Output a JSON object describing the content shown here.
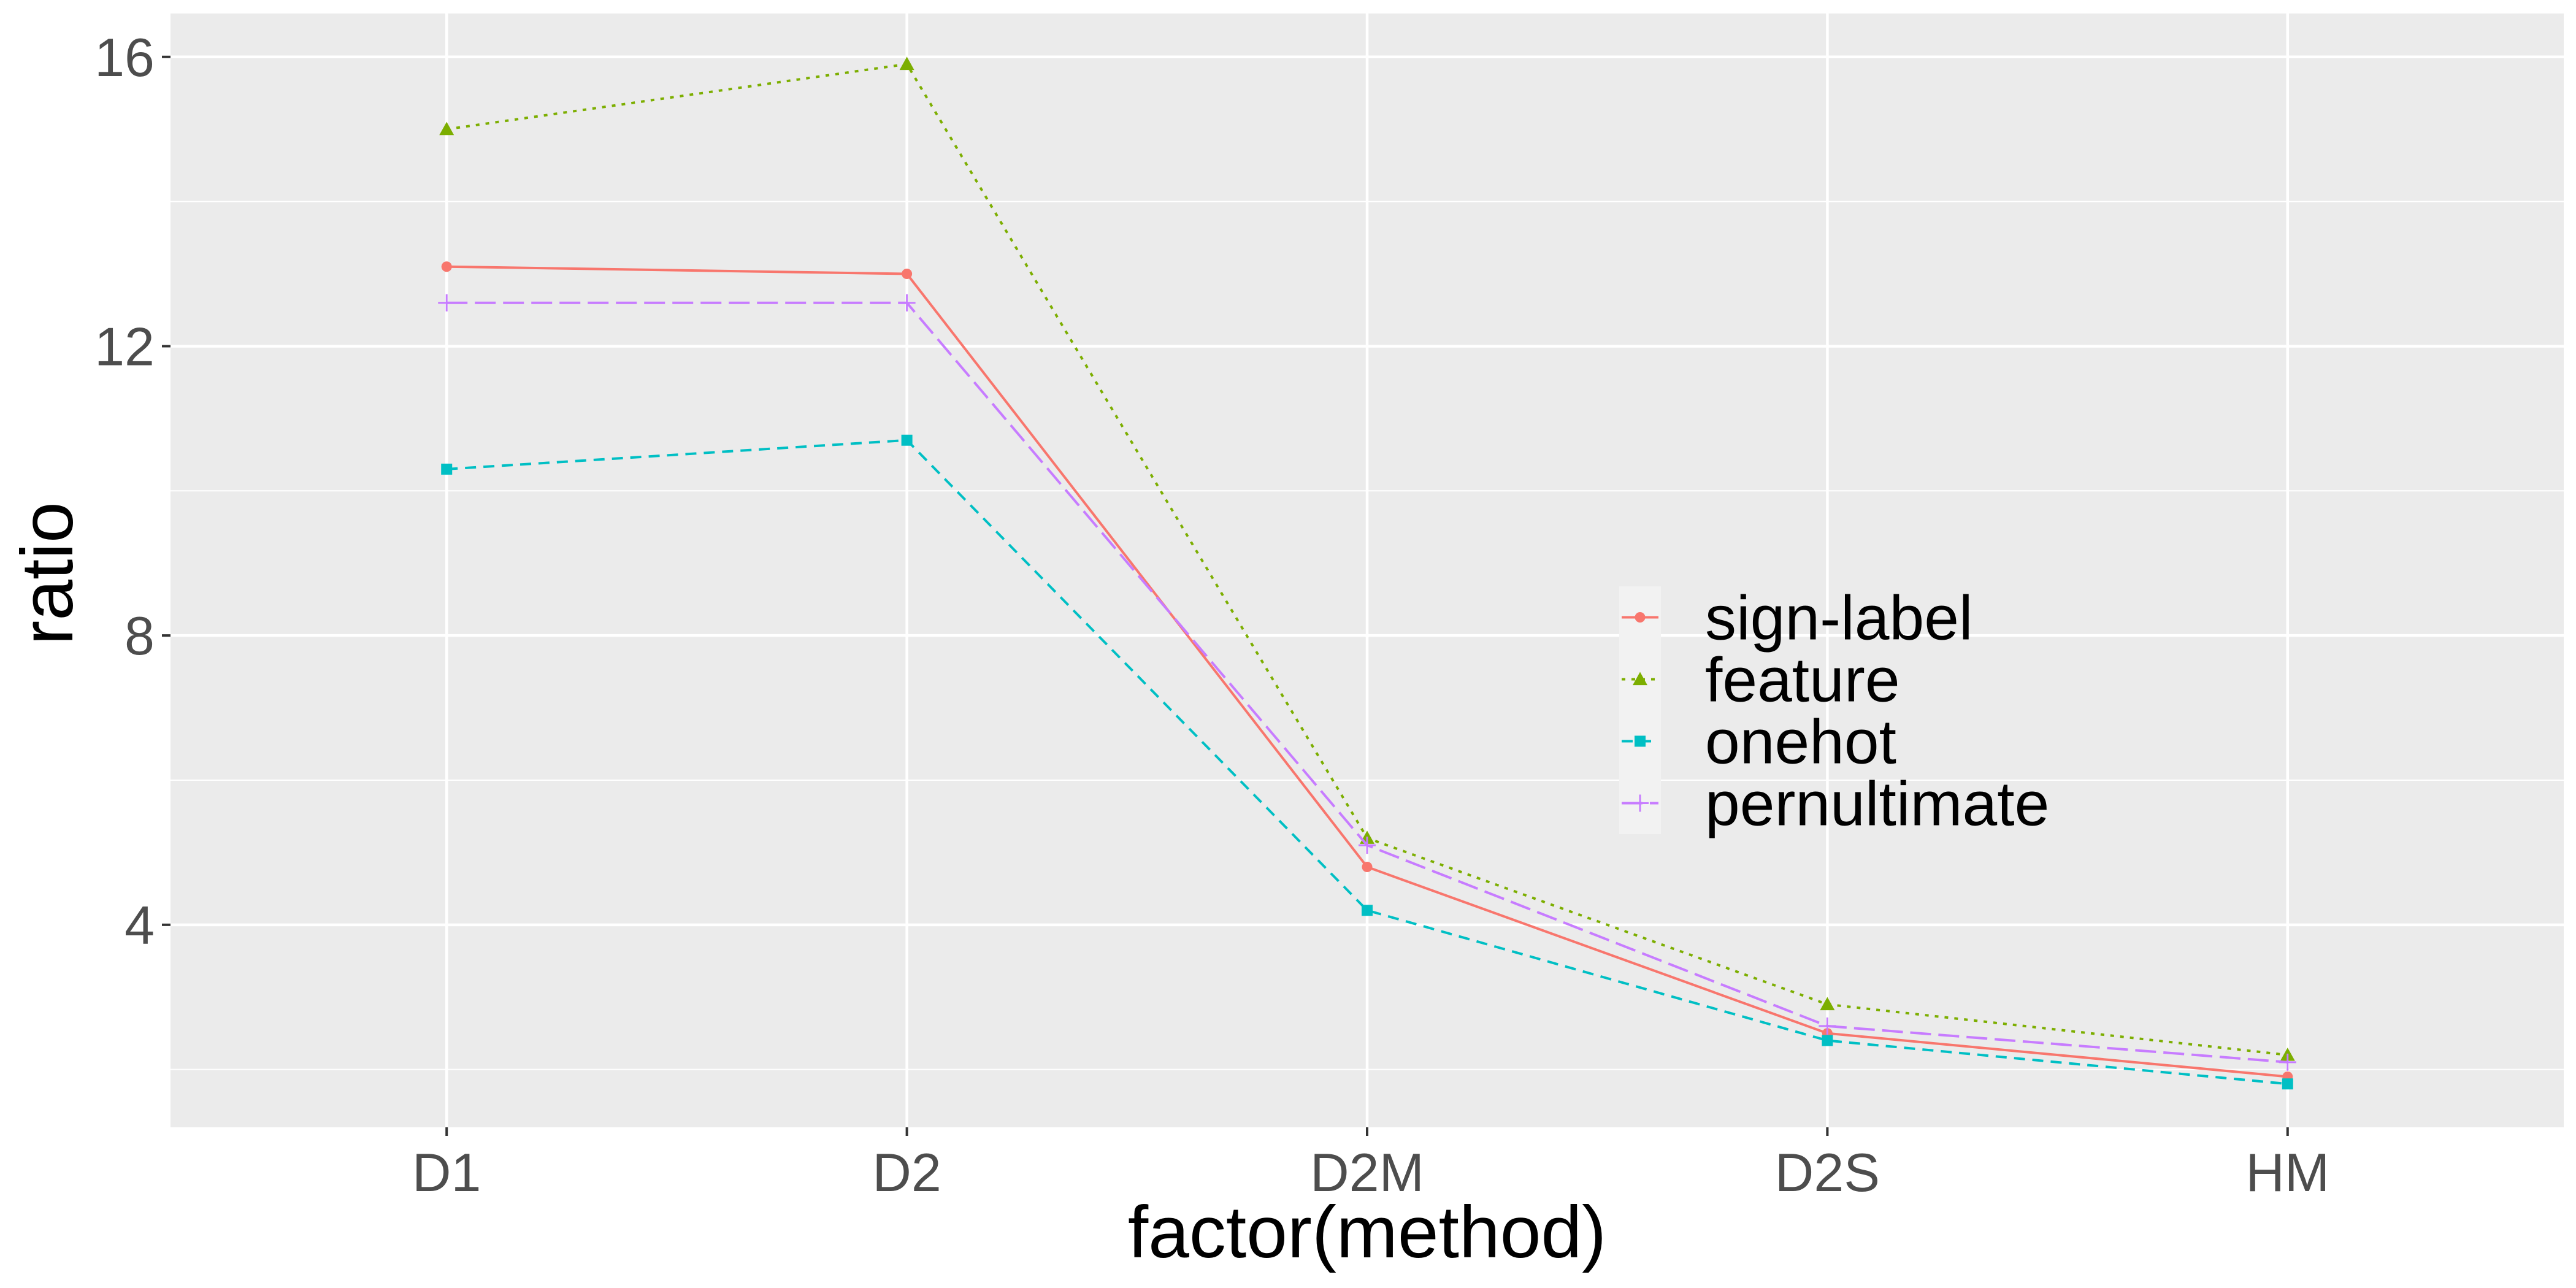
{
  "chart_data": {
    "type": "line",
    "xlabel": "factor(method)",
    "ylabel": "ratio",
    "categories": [
      "D1",
      "D2",
      "D2M",
      "D2S",
      "HM"
    ],
    "ylim": [
      1.2,
      16.6
    ],
    "yticks": [
      4,
      8,
      12,
      16
    ],
    "grid": true,
    "legend_position": "right-center inside",
    "series": [
      {
        "name": "sign-label",
        "values": [
          13.1,
          13.0,
          4.8,
          2.5,
          1.9
        ],
        "color": "#F8766D",
        "marker": "circle",
        "dash": "solid"
      },
      {
        "name": "feature",
        "values": [
          15.0,
          15.9,
          5.2,
          2.9,
          2.2
        ],
        "color": "#7CAE00",
        "marker": "triangle",
        "dash": "dotted"
      },
      {
        "name": "onehot",
        "values": [
          10.3,
          10.7,
          4.2,
          2.4,
          1.8
        ],
        "color": "#00BFC4",
        "marker": "square",
        "dash": "dashed"
      },
      {
        "name": "pernultimate",
        "values": [
          12.6,
          12.6,
          5.1,
          2.6,
          2.1
        ],
        "color": "#C77CFF",
        "marker": "plus",
        "dash": "longdash"
      }
    ]
  }
}
